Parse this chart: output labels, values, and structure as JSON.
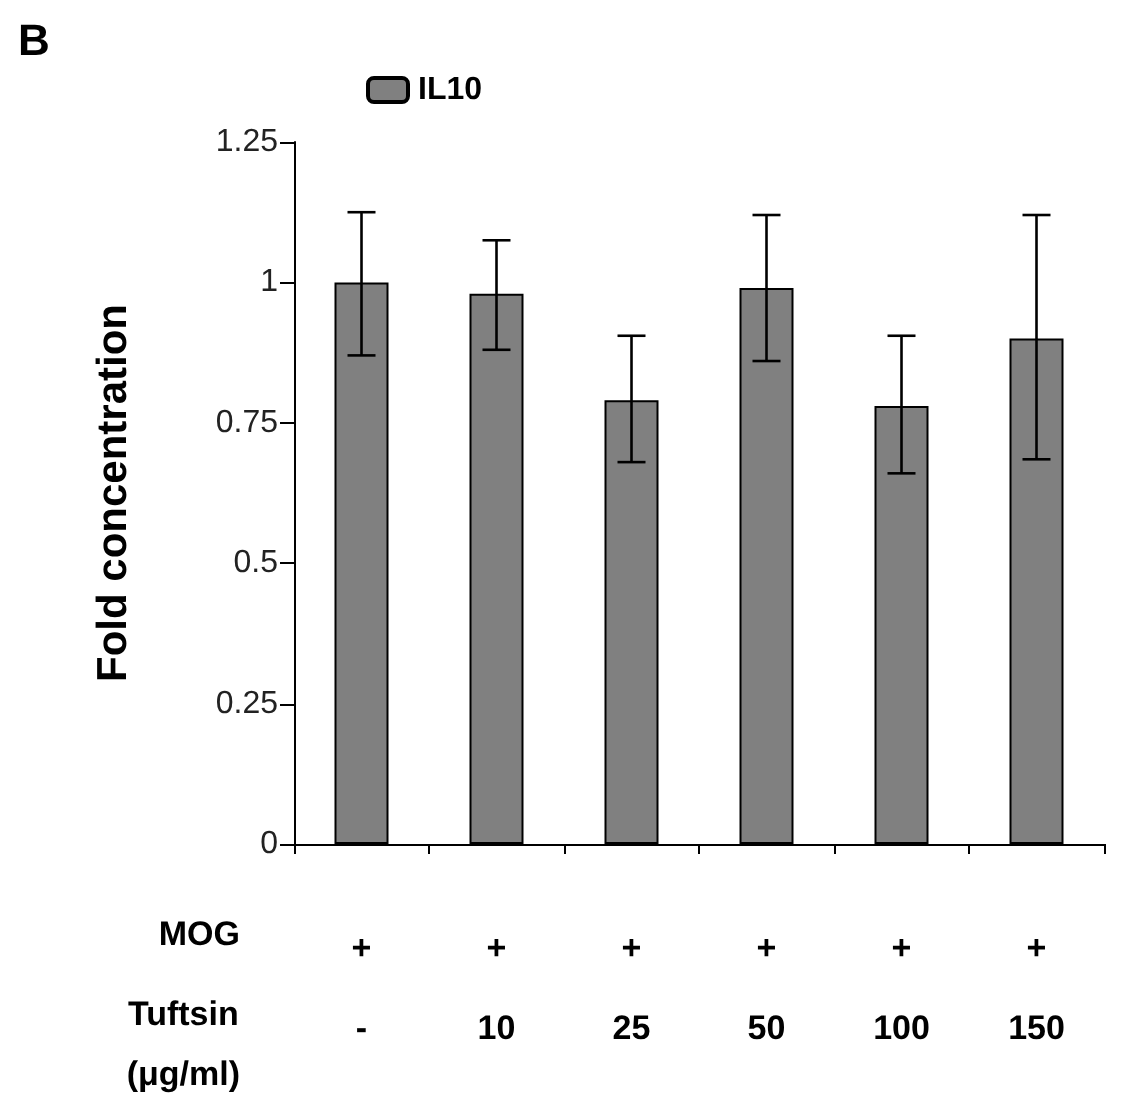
{
  "chart_data": {
    "type": "bar",
    "title": "B",
    "ylabel": "Fold concentration",
    "categories": [
      "+\n-",
      "+\n10",
      "+\n25",
      "+\n50",
      "+\n100",
      "+\n150"
    ],
    "annotations": [
      "MOG",
      "Tuftsin\n(μg/ml)"
    ],
    "series": [
      {
        "name": "IL10",
        "color": "#808080",
        "values": [
          1.0,
          0.98,
          0.79,
          0.99,
          0.78,
          0.9
        ],
        "errors": [
          [
            0.87,
            1.125
          ],
          [
            0.88,
            1.075
          ],
          [
            0.68,
            0.905
          ],
          [
            0.86,
            1.12
          ],
          [
            0.66,
            0.905
          ],
          [
            0.685,
            1.12
          ]
        ]
      }
    ],
    "ylim": [
      0,
      1.25
    ],
    "yticks": [
      0,
      0.25,
      0.5,
      0.75,
      1,
      1.25
    ],
    "legend": "top left",
    "grid": false
  }
}
